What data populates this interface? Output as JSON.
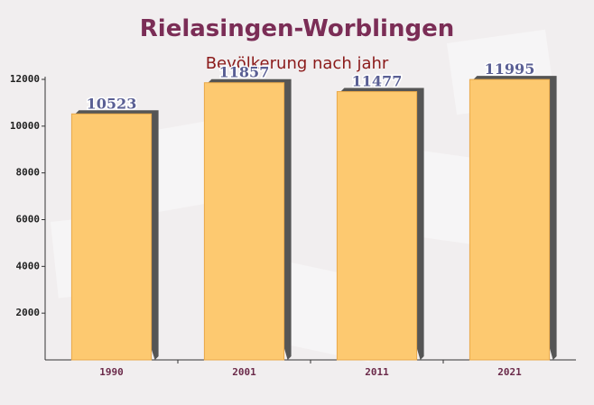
{
  "chart_data": {
    "type": "bar",
    "title": "Rielasingen-Worblingen",
    "subtitle": "Bevölkerung nach jahr",
    "categories": [
      "1990",
      "2001",
      "2011",
      "2021"
    ],
    "values": [
      10523,
      11857,
      11477,
      11995
    ],
    "color": "#fdc970",
    "ylim": [
      0,
      12000
    ],
    "yticks": [
      2000,
      4000,
      6000,
      8000,
      10000,
      12000
    ]
  }
}
